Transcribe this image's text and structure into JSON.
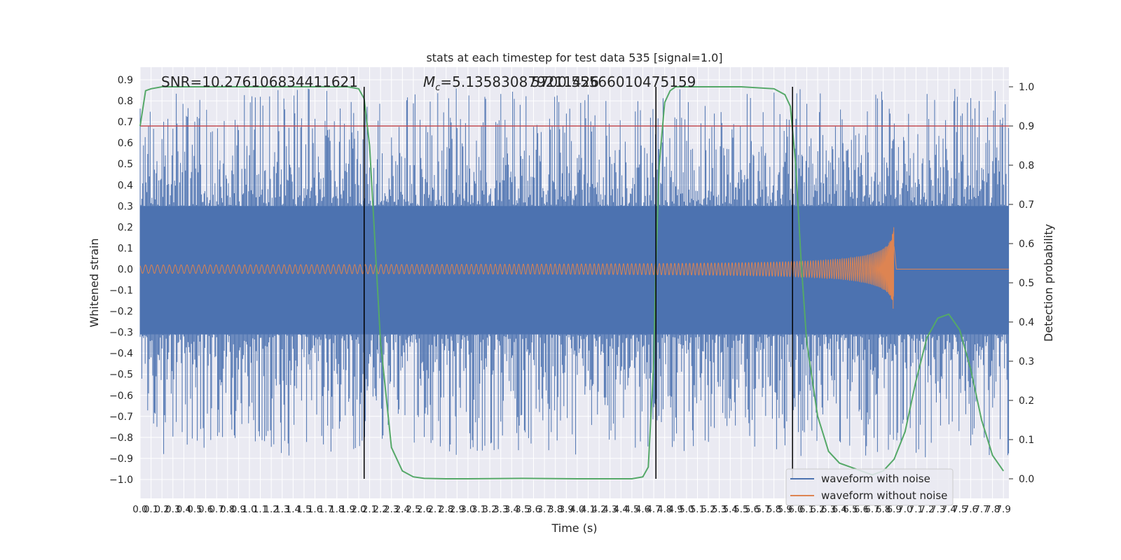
{
  "chart_data": {
    "type": "line",
    "title": "stats at each timestep for test data 535 [signal=1.0]",
    "xlabel": "Time (s)",
    "ylabel": "Whitened strain",
    "ylabel_right": "Detection probability",
    "xlim": [
      0.0,
      7.95
    ],
    "ylim": [
      -1.09,
      0.96
    ],
    "ylim_right": [
      -0.05,
      1.05
    ],
    "x_ticks": [
      "0.0",
      "0.1",
      "0.2",
      "0.3",
      "0.4",
      "0.5",
      "0.6",
      "0.7",
      "0.8",
      "0.9",
      "1.0",
      "1.1",
      "1.2",
      "1.3",
      "1.4",
      "1.5",
      "1.6",
      "1.7",
      "1.8",
      "1.9",
      "2.0",
      "2.1",
      "2.2",
      "2.3",
      "2.4",
      "2.5",
      "2.6",
      "2.7",
      "2.8",
      "2.9",
      "3.0",
      "3.1",
      "3.2",
      "3.3",
      "3.4",
      "3.5",
      "3.6",
      "3.7",
      "3.8",
      "3.9",
      "4.0",
      "4.1",
      "4.2",
      "4.3",
      "4.4",
      "4.5",
      "4.6",
      "4.7",
      "4.8",
      "4.9",
      "5.0",
      "5.1",
      "5.2",
      "5.3",
      "5.4",
      "5.5",
      "5.6",
      "5.7",
      "5.8",
      "5.9",
      "6.0",
      "6.1",
      "6.2",
      "6.3",
      "6.4",
      "6.5",
      "6.6",
      "6.7",
      "6.8",
      "6.9",
      "7.0",
      "7.1",
      "7.2",
      "7.3",
      "7.4",
      "7.5",
      "7.6",
      "7.7",
      "7.8",
      "7.9"
    ],
    "y_ticks": [
      "0.9",
      "0.8",
      "0.7",
      "0.6",
      "0.5",
      "0.4",
      "0.3",
      "0.2",
      "0.1",
      "0.0",
      "−0.1",
      "−0.2",
      "−0.3",
      "−0.4",
      "−0.5",
      "−0.6",
      "−0.7",
      "−0.8",
      "−0.9",
      "−1.0"
    ],
    "y_ticks_right": [
      "1.0",
      "0.9",
      "0.8",
      "0.7",
      "0.6",
      "0.5",
      "0.4",
      "0.3",
      "0.2",
      "0.1",
      "0.0"
    ],
    "annotations": {
      "snr": "SNR=10.276106834411621",
      "mc_prefix": "M",
      "mc_sub": "c",
      "mc_value": "=5.135830879211426",
      "mc_overlap": "5700.55566010475159"
    },
    "grid": true,
    "legend": {
      "placement": "lower-right",
      "entries": [
        "waveform with noise",
        "waveform without noise"
      ]
    },
    "threshold_right": 0.9,
    "vlines": [
      2.05,
      4.72,
      5.97
    ],
    "series": [
      {
        "name": "waveform with noise",
        "color": "#4c72b0",
        "envelope_top": 0.3,
        "envelope_bottom": -0.31,
        "peak_max": 0.86,
        "peak_min": -1.0
      },
      {
        "name": "waveform without noise",
        "color": "#dd8452",
        "start_amplitude": 0.02,
        "peak_amplitude": 0.2,
        "merger_time": 6.9
      },
      {
        "name": "Detection probability",
        "color": "#55a868",
        "x": [
          0.0,
          0.05,
          0.1,
          0.2,
          0.5,
          1.0,
          1.5,
          1.9,
          2.0,
          2.05,
          2.1,
          2.15,
          2.2,
          2.3,
          2.4,
          2.5,
          2.6,
          2.8,
          3.0,
          3.5,
          4.0,
          4.5,
          4.6,
          4.65,
          4.7,
          4.72,
          4.75,
          4.8,
          4.85,
          4.9,
          5.0,
          5.5,
          5.8,
          5.9,
          5.95,
          6.0,
          6.05,
          6.1,
          6.2,
          6.3,
          6.4,
          6.5,
          6.6,
          6.7,
          6.8,
          6.9,
          7.0,
          7.1,
          7.2,
          7.3,
          7.4,
          7.5,
          7.6,
          7.7,
          7.8,
          7.9
        ],
        "y": [
          0.9,
          0.99,
          0.995,
          1.0,
          1.0,
          1.0,
          1.0,
          1.0,
          0.995,
          0.97,
          0.85,
          0.6,
          0.35,
          0.08,
          0.02,
          0.005,
          0.001,
          0.0,
          0.0,
          0.001,
          0.0,
          0.0,
          0.005,
          0.03,
          0.3,
          0.55,
          0.8,
          0.96,
          0.99,
          1.0,
          1.0,
          1.0,
          0.995,
          0.98,
          0.95,
          0.8,
          0.55,
          0.35,
          0.16,
          0.07,
          0.04,
          0.03,
          0.02,
          0.01,
          0.02,
          0.05,
          0.12,
          0.25,
          0.36,
          0.41,
          0.42,
          0.38,
          0.28,
          0.15,
          0.06,
          0.02
        ]
      }
    ]
  }
}
